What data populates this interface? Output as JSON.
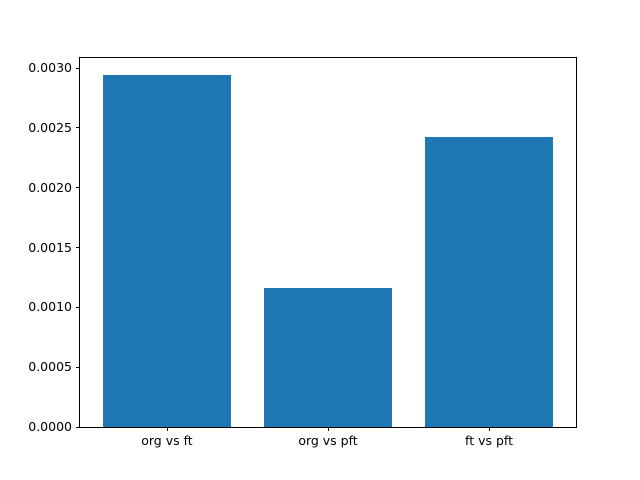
{
  "chart_data": {
    "type": "bar",
    "categories": [
      "org vs ft",
      "org vs pft",
      "ft vs pft"
    ],
    "values": [
      0.00294,
      0.00116,
      0.00242
    ],
    "title": "",
    "xlabel": "",
    "ylabel": "",
    "xlim": [
      -0.54,
      2.54
    ],
    "ylim": [
      0,
      0.003087
    ],
    "bar_width": 0.8,
    "yticks": [
      0.0,
      0.0005,
      0.001,
      0.0015,
      0.002,
      0.0025,
      0.003
    ],
    "ytick_labels": [
      "0.0000",
      "0.0005",
      "0.0010",
      "0.0015",
      "0.0020",
      "0.0025",
      "0.0030"
    ],
    "bar_color": "#1f77b4",
    "axes_background": "#ffffff",
    "figure_background": "#ffffff",
    "spine_color": "#000000",
    "tick_color": "#000000",
    "grid": false,
    "legend": null
  }
}
